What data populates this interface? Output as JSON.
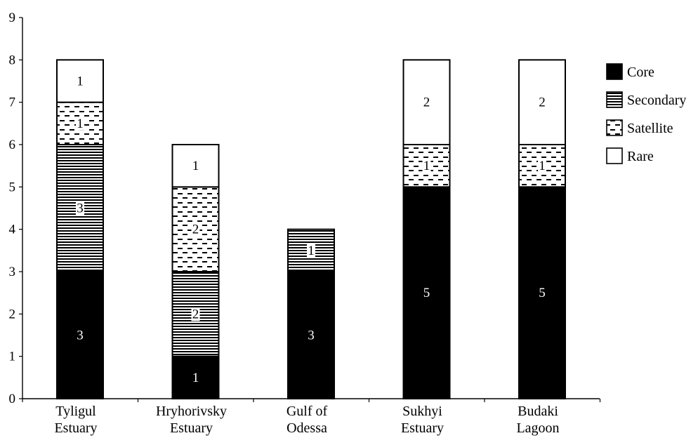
{
  "chart_data": {
    "type": "bar",
    "stacked": true,
    "title": "",
    "xlabel": "",
    "ylabel": "",
    "ylim": [
      0,
      9
    ],
    "yticks": [
      0,
      1,
      2,
      3,
      4,
      5,
      6,
      7,
      8,
      9
    ],
    "grid": false,
    "legend_position": "right",
    "categories": [
      [
        "Tyligul",
        "Estuary"
      ],
      [
        "Hryhorivsky",
        "Estuary"
      ],
      [
        "Gulf of",
        "Odessa"
      ],
      [
        "Sukhyi",
        "Estuary"
      ],
      [
        "Budaki",
        "Lagoon"
      ]
    ],
    "series": [
      {
        "name": "Core",
        "pattern": "solid",
        "color": "#000000",
        "values": [
          3,
          1,
          3,
          5,
          5
        ]
      },
      {
        "name": "Secondary",
        "pattern": "horizontal-lines",
        "color": "#000000",
        "values": [
          3,
          2,
          1,
          0,
          0
        ]
      },
      {
        "name": "Satellite",
        "pattern": "dashes",
        "color": "#000000",
        "values": [
          1,
          2,
          0,
          1,
          1
        ]
      },
      {
        "name": "Rare",
        "pattern": "empty",
        "color": "#ffffff",
        "values": [
          1,
          1,
          0,
          2,
          2
        ]
      }
    ]
  }
}
